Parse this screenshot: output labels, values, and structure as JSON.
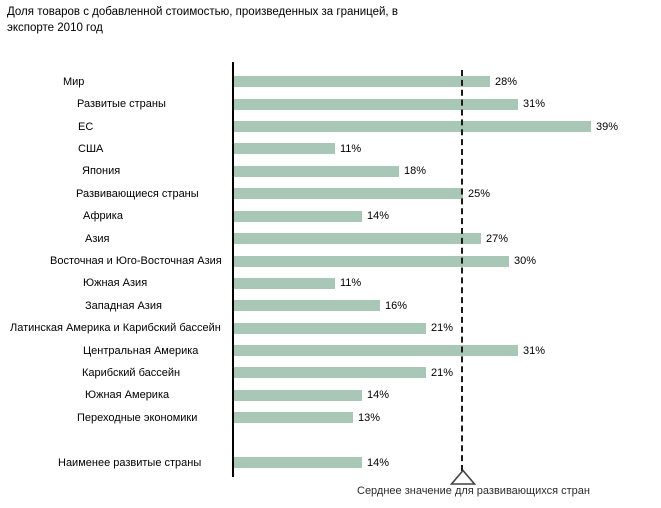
{
  "title": "Доля товаров с добавленной стоимостью, произведенных за границей, в\nэкспорте 2010 год",
  "footnote": "Серднее значение для развивающихся стран",
  "colors": {
    "bar": "#a9c7b7",
    "axis": "#000000",
    "reference_line": "#1a1a1a",
    "text": "#000000",
    "background": "#ffffff"
  },
  "chart_data": {
    "type": "bar",
    "orientation": "horizontal",
    "unit": "%",
    "title": "Доля товаров с добавленной стоимостью, произведенных за границей, в экспорте 2010 год",
    "xlim": [
      0,
      46
    ],
    "grid": false,
    "legend": false,
    "value_labels": "outside-end",
    "reference_line": {
      "value": 25,
      "style": "dashed",
      "marker": "triangle",
      "label": "Серднее значение для развивающихся стран"
    },
    "rows": [
      {
        "label": "Мир",
        "value": 28,
        "indent": 63
      },
      {
        "label": "Развитые страны",
        "value": 31,
        "indent": 77
      },
      {
        "label": "ЕС",
        "value": 39,
        "indent": 78
      },
      {
        "label": "США",
        "value": 11,
        "indent": 78
      },
      {
        "label": "Япония",
        "value": 18,
        "indent": 82
      },
      {
        "label": "Развивающиеся страны",
        "value": 25,
        "indent": 76
      },
      {
        "label": "Африка",
        "value": 14,
        "indent": 83
      },
      {
        "label": "Азия",
        "value": 27,
        "indent": 85
      },
      {
        "label": "Восточная и Юго-Восточная Азия",
        "value": 30,
        "indent": 50
      },
      {
        "label": "Южная Азия",
        "value": 11,
        "indent": 83
      },
      {
        "label": "Западная Азия",
        "value": 16,
        "indent": 85
      },
      {
        "label": "Латинская Америка и Карибский бассейн",
        "value": 21,
        "indent": 10
      },
      {
        "label": "Центральная Америка",
        "value": 31,
        "indent": 83
      },
      {
        "label": "Карибский бассейн",
        "value": 21,
        "indent": 82
      },
      {
        "label": "Южная Америка",
        "value": 14,
        "indent": 85
      },
      {
        "label": "Переходные экономики",
        "value": 13,
        "indent": 77
      },
      {
        "label": "Наименее развитые страны",
        "value": 14,
        "indent": 58,
        "gap_before": true
      }
    ]
  }
}
